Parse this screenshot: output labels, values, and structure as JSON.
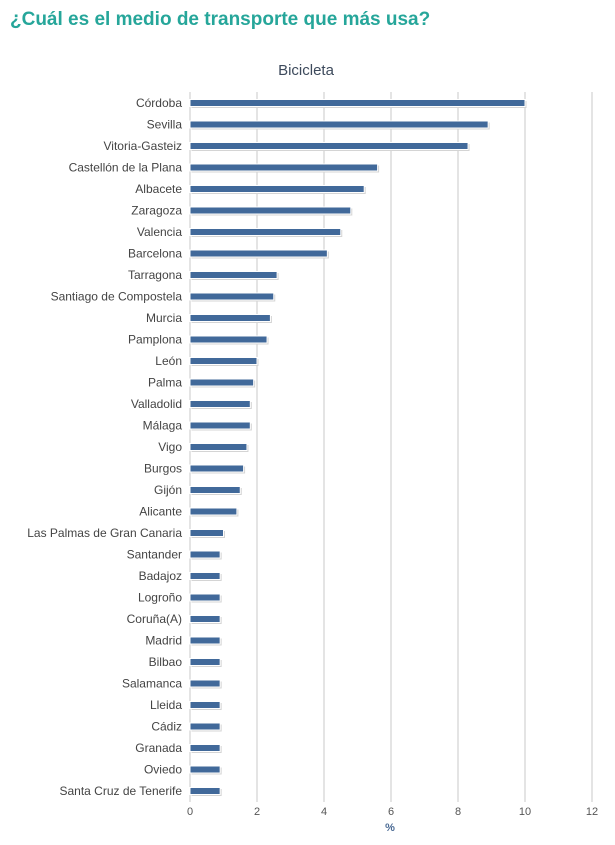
{
  "page": {
    "heading": "¿Cuál es el medio de transporte que más usa?"
  },
  "colors": {
    "heading": "#26a69a",
    "bar": "#41699a",
    "axis_title": "#4a6a94",
    "grid": "#c8c8c8"
  },
  "chart_data": {
    "type": "bar",
    "orientation": "horizontal",
    "title": "Bicicleta",
    "xlabel": "%",
    "ylabel": "",
    "xlim": [
      0,
      12
    ],
    "xticks": [
      0,
      2,
      4,
      6,
      8,
      10,
      12
    ],
    "grid": true,
    "legend": "none",
    "categories": [
      "Córdoba",
      "Sevilla",
      "Vitoria-Gasteiz",
      "Castellón de la Plana",
      "Albacete",
      "Zaragoza",
      "Valencia",
      "Barcelona",
      "Tarragona",
      "Santiago de Compostela",
      "Murcia",
      "Pamplona",
      "León",
      "Palma",
      "Valladolid",
      "Málaga",
      "Vigo",
      "Burgos",
      "Gijón",
      "Alicante",
      "Las Palmas de Gran Canaria",
      "Santander",
      "Badajoz",
      "Logroño",
      "Coruña(A)",
      "Madrid",
      "Bilbao",
      "Salamanca",
      "Lleida",
      "Cádiz",
      "Granada",
      "Oviedo",
      "Santa Cruz de Tenerife"
    ],
    "values": [
      10.0,
      8.9,
      8.3,
      5.6,
      5.2,
      4.8,
      4.5,
      4.1,
      2.6,
      2.5,
      2.4,
      2.3,
      2.0,
      1.9,
      1.8,
      1.8,
      1.7,
      1.6,
      1.5,
      1.4,
      1.0,
      0.9,
      0.9,
      0.9,
      0.9,
      0.9,
      0.9,
      0.9,
      0.9,
      0.9,
      0.9,
      0.9,
      0.9
    ]
  }
}
